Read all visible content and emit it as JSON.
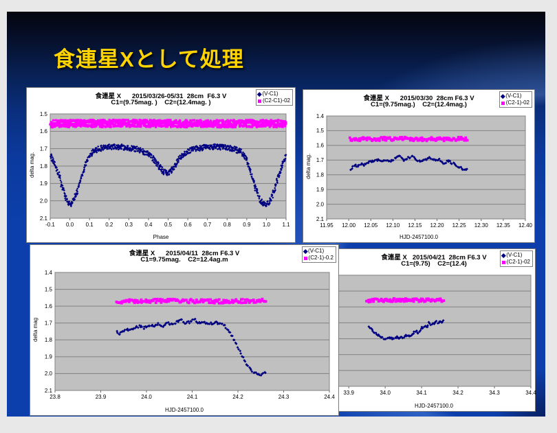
{
  "slide": {
    "title": "食連星Xとして処理"
  },
  "colors": {
    "slide_blue": "#0c3fab",
    "title_yellow": "#ffd400",
    "plot_bg": "#c0c0c0",
    "grid": "#808080",
    "series_blue": "#000080",
    "series_magenta": "#ff00ff"
  },
  "chart_data": [
    {
      "type": "scatter",
      "title_line1": "食連星 X      2015/03/26-05/31  28cm  F6.3 V",
      "title_line2": "C1=(9.75mag. )    C2=(12.4mag. )",
      "xlabel": "Phase",
      "ylabel": "delta mag.",
      "legend_position": "top-right",
      "grid": "horizontal",
      "xlim": [
        -0.1,
        1.1
      ],
      "ylim": [
        1.5,
        2.1
      ],
      "xticks": [
        -0.1,
        0.0,
        0.1,
        0.2,
        0.3,
        0.4,
        0.5,
        0.6,
        0.7,
        0.8,
        0.9,
        1.0,
        1.1
      ],
      "xtick_labels": [
        "-0.1",
        "0.0",
        "0.1",
        "0.2",
        "0.3",
        "0.4",
        "0.5",
        "0.6",
        "0.7",
        "0.8",
        "0.9",
        "1.0",
        "1.1"
      ],
      "yticks": [
        1.5,
        1.6,
        1.7,
        1.8,
        1.9,
        2.0,
        2.1
      ],
      "ytick_labels": [
        "1.5",
        "1.6",
        "1.7",
        "1.8",
        "1.9",
        "2.0",
        "2.1"
      ],
      "yticks_visible": true,
      "series": [
        {
          "name": "(V-C1)",
          "color": "#000080",
          "marker": "diamond",
          "n": 820,
          "jitter": 0.016,
          "r": 1.6,
          "points": [
            [
              -0.1,
              1.735
            ],
            [
              -0.08,
              1.775
            ],
            [
              -0.06,
              1.835
            ],
            [
              -0.04,
              1.915
            ],
            [
              -0.02,
              1.985
            ],
            [
              -0.01,
              2.01
            ],
            [
              0.0,
              2.02
            ],
            [
              0.01,
              2.015
            ],
            [
              0.02,
              1.995
            ],
            [
              0.04,
              1.935
            ],
            [
              0.06,
              1.86
            ],
            [
              0.08,
              1.795
            ],
            [
              0.1,
              1.745
            ],
            [
              0.12,
              1.715
            ],
            [
              0.15,
              1.7
            ],
            [
              0.2,
              1.69
            ],
            [
              0.25,
              1.69
            ],
            [
              0.3,
              1.695
            ],
            [
              0.35,
              1.705
            ],
            [
              0.4,
              1.73
            ],
            [
              0.43,
              1.765
            ],
            [
              0.46,
              1.81
            ],
            [
              0.48,
              1.835
            ],
            [
              0.5,
              1.84
            ],
            [
              0.52,
              1.82
            ],
            [
              0.55,
              1.77
            ],
            [
              0.58,
              1.73
            ],
            [
              0.62,
              1.705
            ],
            [
              0.67,
              1.695
            ],
            [
              0.72,
              1.69
            ],
            [
              0.78,
              1.69
            ],
            [
              0.83,
              1.7
            ],
            [
              0.87,
              1.715
            ],
            [
              0.89,
              1.745
            ],
            [
              0.91,
              1.8
            ],
            [
              0.93,
              1.875
            ],
            [
              0.95,
              1.945
            ],
            [
              0.97,
              2.0
            ],
            [
              0.99,
              2.018
            ],
            [
              1.0,
              2.02
            ],
            [
              1.01,
              2.013
            ],
            [
              1.03,
              1.97
            ],
            [
              1.05,
              1.9
            ],
            [
              1.07,
              1.825
            ],
            [
              1.09,
              1.765
            ],
            [
              1.1,
              1.735
            ]
          ]
        },
        {
          "name": "(C2-C1)-02",
          "color": "#ff00ff",
          "marker": "square",
          "n": 900,
          "jitter": 0.021,
          "r": 1.7,
          "points": [
            [
              -0.1,
              1.556
            ],
            [
              0.3,
              1.554
            ],
            [
              0.7,
              1.557
            ],
            [
              1.1,
              1.555
            ]
          ]
        }
      ]
    },
    {
      "type": "scatter",
      "title_line1": "食連星 X      2015/03/30  28cm F6.3 V",
      "title_line2": "C1=(9.75mag.)    C2=(12.4mag.)",
      "xlabel": "HJD-2457100.0",
      "ylabel": "delta mag.",
      "legend_position": "top-right",
      "grid": "horizontal",
      "xlim": [
        11.95,
        12.4
      ],
      "ylim": [
        1.4,
        2.1
      ],
      "xticks": [
        11.95,
        12.0,
        12.05,
        12.1,
        12.15,
        12.2,
        12.25,
        12.3,
        12.35,
        12.4
      ],
      "xtick_labels": [
        "11.95",
        "12.00",
        "12.05",
        "12.10",
        "12.15",
        "12.20",
        "12.25",
        "12.30",
        "12.35",
        "12.40"
      ],
      "yticks": [
        1.4,
        1.5,
        1.6,
        1.7,
        1.8,
        1.9,
        2.0,
        2.1
      ],
      "ytick_labels": [
        "1.4",
        "1.5",
        "1.6",
        "1.7",
        "1.8",
        "1.9",
        "2.0",
        "2.1"
      ],
      "yticks_visible": true,
      "series": [
        {
          "name": "(V-C1)",
          "color": "#000080",
          "marker": "diamond",
          "n": 110,
          "jitter": 0.007,
          "r": 1.9,
          "points": [
            [
              12.005,
              1.76
            ],
            [
              12.012,
              1.735
            ],
            [
              12.02,
              1.745
            ],
            [
              12.028,
              1.72
            ],
            [
              12.035,
              1.735
            ],
            [
              12.045,
              1.71
            ],
            [
              12.055,
              1.705
            ],
            [
              12.065,
              1.7
            ],
            [
              12.075,
              1.705
            ],
            [
              12.085,
              1.7
            ],
            [
              12.095,
              1.705
            ],
            [
              12.105,
              1.69
            ],
            [
              12.115,
              1.675
            ],
            [
              12.125,
              1.7
            ],
            [
              12.135,
              1.685
            ],
            [
              12.145,
              1.675
            ],
            [
              12.155,
              1.705
            ],
            [
              12.165,
              1.71
            ],
            [
              12.175,
              1.695
            ],
            [
              12.185,
              1.685
            ],
            [
              12.195,
              1.7
            ],
            [
              12.205,
              1.695
            ],
            [
              12.215,
              1.72
            ],
            [
              12.225,
              1.705
            ],
            [
              12.235,
              1.72
            ],
            [
              12.245,
              1.74
            ],
            [
              12.255,
              1.755
            ],
            [
              12.262,
              1.765
            ],
            [
              12.268,
              1.76
            ]
          ]
        },
        {
          "name": "(C2-1)-02",
          "color": "#ff00ff",
          "marker": "square",
          "n": 130,
          "jitter": 0.012,
          "r": 1.9,
          "points": [
            [
              12.003,
              1.558
            ],
            [
              12.1,
              1.555
            ],
            [
              12.2,
              1.558
            ],
            [
              12.268,
              1.555
            ]
          ]
        }
      ]
    },
    {
      "type": "scatter",
      "title_line1": "食連星 X      2015/04/11  28cm F6.3 V",
      "title_line2": "C1=9.75mag.    C2=12.4ag.m",
      "xlabel": "HJD-2457100.0",
      "ylabel": "delta mag",
      "legend_position": "top-right",
      "grid": "horizontal",
      "xlim": [
        23.8,
        24.4
      ],
      "ylim": [
        1.4,
        2.1
      ],
      "xticks": [
        23.8,
        23.9,
        24.0,
        24.1,
        24.2,
        24.3,
        24.4
      ],
      "xtick_labels": [
        "23.8",
        "23.9",
        "24.0",
        "24.1",
        "24.2",
        "24.3",
        "24.4"
      ],
      "yticks": [
        1.4,
        1.5,
        1.6,
        1.7,
        1.8,
        1.9,
        2.0,
        2.1
      ],
      "ytick_labels": [
        "1.4",
        "1.5",
        "1.6",
        "1.7",
        "1.8",
        "1.9",
        "2.0",
        "2.1"
      ],
      "yticks_visible": true,
      "series": [
        {
          "name": "(V-C1)",
          "color": "#000080",
          "marker": "diamond",
          "n": 140,
          "jitter": 0.007,
          "r": 1.9,
          "points": [
            [
              23.935,
              1.755
            ],
            [
              23.94,
              1.765
            ],
            [
              23.95,
              1.75
            ],
            [
              23.955,
              1.735
            ],
            [
              23.965,
              1.745
            ],
            [
              23.975,
              1.73
            ],
            [
              23.985,
              1.72
            ],
            [
              23.995,
              1.73
            ],
            [
              24.005,
              1.715
            ],
            [
              24.015,
              1.72
            ],
            [
              24.025,
              1.705
            ],
            [
              24.035,
              1.72
            ],
            [
              24.045,
              1.7
            ],
            [
              24.055,
              1.71
            ],
            [
              24.065,
              1.695
            ],
            [
              24.075,
              1.68
            ],
            [
              24.085,
              1.7
            ],
            [
              24.095,
              1.695
            ],
            [
              24.105,
              1.68
            ],
            [
              24.115,
              1.7
            ],
            [
              24.125,
              1.695
            ],
            [
              24.135,
              1.7
            ],
            [
              24.145,
              1.705
            ],
            [
              24.155,
              1.695
            ],
            [
              24.16,
              1.71
            ],
            [
              24.165,
              1.7
            ],
            [
              24.17,
              1.715
            ],
            [
              24.175,
              1.73
            ],
            [
              24.18,
              1.75
            ],
            [
              24.185,
              1.77
            ],
            [
              24.19,
              1.795
            ],
            [
              24.195,
              1.82
            ],
            [
              24.2,
              1.845
            ],
            [
              24.205,
              1.87
            ],
            [
              24.21,
              1.9
            ],
            [
              24.215,
              1.925
            ],
            [
              24.22,
              1.95
            ],
            [
              24.225,
              1.965
            ],
            [
              24.23,
              1.985
            ],
            [
              24.235,
              2.0
            ],
            [
              24.24,
              1.995
            ],
            [
              24.245,
              2.005
            ],
            [
              24.25,
              2.01
            ],
            [
              24.255,
              2.0
            ],
            [
              24.26,
              1.995
            ]
          ]
        },
        {
          "name": "(C2-1)-0.2",
          "color": "#ff00ff",
          "marker": "square",
          "n": 160,
          "jitter": 0.011,
          "r": 1.9,
          "points": [
            [
              23.935,
              1.572
            ],
            [
              24.05,
              1.568
            ],
            [
              24.15,
              1.572
            ],
            [
              24.26,
              1.568
            ]
          ]
        }
      ]
    },
    {
      "type": "scatter",
      "title_line1": "食連星 X   2015/04/21  28cm F6.3 V",
      "title_line2": "C1=(9.75)    C2=(12.4)",
      "xlabel": "HJD-2457100.0",
      "ylabel": null,
      "legend_position": "top-right",
      "grid": "horizontal",
      "xlim": [
        33.86,
        34.4
      ],
      "ylim": [
        1.4,
        2.1
      ],
      "xticks": [
        33.9,
        34.0,
        34.1,
        34.2,
        34.3,
        34.4
      ],
      "xtick_labels": [
        "33.9",
        "34.0",
        "34.1",
        "34.2",
        "34.3",
        "34.4"
      ],
      "yticks": [
        1.4,
        1.5,
        1.6,
        1.7,
        1.8,
        1.9,
        2.0,
        2.1
      ],
      "ytick_labels": [
        "1.4",
        "1.5",
        "1.6",
        "1.7",
        "1.8",
        "1.9",
        "2.0",
        "2.1"
      ],
      "yticks_visible": false,
      "series": [
        {
          "name": "(V-C1)",
          "color": "#000080",
          "marker": "diamond",
          "n": 78,
          "jitter": 0.007,
          "r": 1.9,
          "points": [
            [
              33.955,
              1.72
            ],
            [
              33.96,
              1.735
            ],
            [
              33.965,
              1.75
            ],
            [
              33.97,
              1.765
            ],
            [
              33.98,
              1.775
            ],
            [
              33.99,
              1.79
            ],
            [
              34.0,
              1.8
            ],
            [
              34.01,
              1.79
            ],
            [
              34.02,
              1.8
            ],
            [
              34.03,
              1.79
            ],
            [
              34.045,
              1.795
            ],
            [
              34.055,
              1.78
            ],
            [
              34.065,
              1.785
            ],
            [
              34.075,
              1.77
            ],
            [
              34.085,
              1.75
            ],
            [
              34.09,
              1.765
            ],
            [
              34.1,
              1.73
            ],
            [
              34.105,
              1.74
            ],
            [
              34.11,
              1.72
            ],
            [
              34.115,
              1.73
            ],
            [
              34.12,
              1.7
            ],
            [
              34.125,
              1.715
            ],
            [
              34.13,
              1.695
            ],
            [
              34.135,
              1.71
            ],
            [
              34.14,
              1.69
            ],
            [
              34.145,
              1.7
            ],
            [
              34.15,
              1.685
            ],
            [
              34.155,
              1.695
            ],
            [
              34.16,
              1.685
            ]
          ]
        },
        {
          "name": "(C2-1)-02",
          "color": "#ff00ff",
          "marker": "square",
          "n": 95,
          "jitter": 0.01,
          "r": 1.9,
          "points": [
            [
              33.95,
              1.56
            ],
            [
              34.05,
              1.556
            ],
            [
              34.16,
              1.558
            ]
          ]
        }
      ]
    }
  ]
}
